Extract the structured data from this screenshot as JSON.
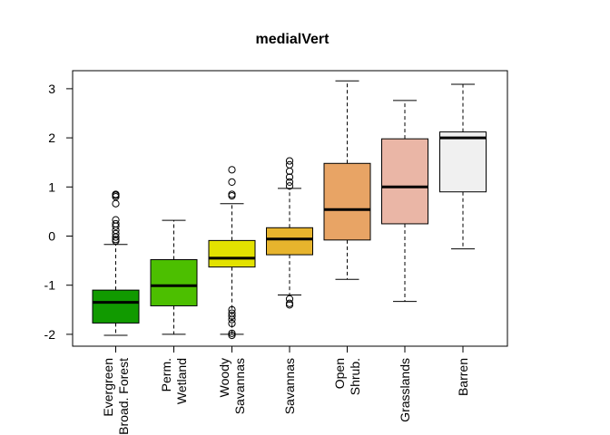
{
  "chart_data": {
    "type": "boxplot",
    "title": "medialVert",
    "xlabel": "",
    "ylabel": "",
    "ylim": [
      -2.25,
      3.35
    ],
    "yticks": [
      "-2",
      "-1",
      "0",
      "1",
      "2",
      "3"
    ],
    "ytick_values": [
      -2,
      -1,
      0,
      1,
      2,
      3
    ],
    "grid": false,
    "legend": "none",
    "categories": [
      [
        "Evergreen",
        "Broad. Forest"
      ],
      [
        "Perm.",
        "Wetland"
      ],
      [
        "Woody",
        "Savannas"
      ],
      [
        "Savannas"
      ],
      [
        "Open",
        "Shrub."
      ],
      [
        "Grasslands"
      ],
      [
        "Barren"
      ]
    ],
    "boxes": [
      {
        "color": "#119A00",
        "whisker_low": -2.02,
        "q1": -1.77,
        "median": -1.35,
        "q3": -1.1,
        "whisker_high": -0.17,
        "outliers": [
          0.85,
          0.83,
          0.8,
          0.66,
          0.33,
          0.25,
          0.2,
          0.12,
          0.05,
          -0.02,
          -0.07,
          -0.1
        ]
      },
      {
        "color": "#4CBF00",
        "whisker_low": -2.0,
        "q1": -1.42,
        "median": -1.01,
        "q3": -0.48,
        "whisker_high": 0.32,
        "outliers": []
      },
      {
        "color": "#E3E200",
        "whisker_low": -2.0,
        "q1": -0.63,
        "median": -0.45,
        "q3": -0.09,
        "whisker_high": 0.66,
        "outliers": [
          1.35,
          1.1,
          0.85,
          0.82,
          -1.5,
          -1.57,
          -1.63,
          -1.7,
          -1.78,
          -1.98,
          -2.02
        ]
      },
      {
        "color": "#E7B42D",
        "whisker_low": -1.2,
        "q1": -0.38,
        "median": -0.06,
        "q3": 0.17,
        "whisker_high": 0.97,
        "outliers": [
          1.53,
          1.45,
          1.32,
          1.2,
          1.1,
          1.02,
          -1.28,
          -1.37,
          -1.4
        ]
      },
      {
        "color": "#E8A465",
        "whisker_low": -0.88,
        "q1": -0.08,
        "median": 0.54,
        "q3": 1.48,
        "whisker_high": 3.16,
        "outliers": []
      },
      {
        "color": "#EAB6A6",
        "whisker_low": -1.33,
        "q1": 0.25,
        "median": 1.0,
        "q3": 1.98,
        "whisker_high": 2.76,
        "outliers": []
      },
      {
        "color": "#F0F0F0",
        "whisker_low": -0.26,
        "q1": 0.9,
        "median": 2.0,
        "q3": 2.12,
        "whisker_high": 3.09,
        "outliers": []
      }
    ]
  }
}
